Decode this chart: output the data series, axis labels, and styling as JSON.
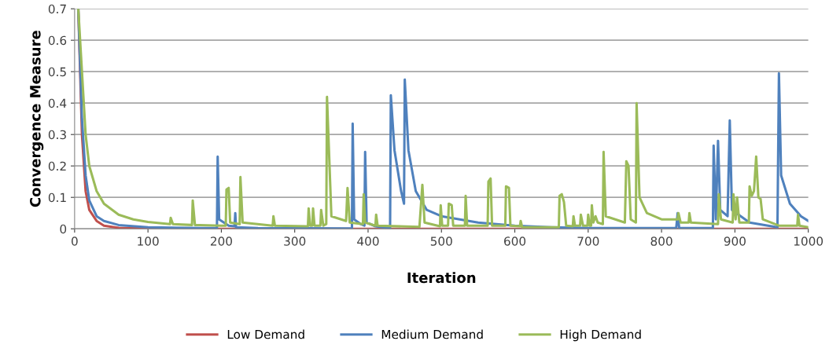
{
  "chart_data": {
    "type": "line",
    "xlabel": "Iteration",
    "ylabel": "Convergence Measure",
    "xlim": [
      0,
      1000
    ],
    "xticks": [
      0,
      100,
      200,
      300,
      400,
      500,
      600,
      700,
      800,
      900,
      1000
    ],
    "ylim": [
      0,
      0.7
    ],
    "yticks": [
      0,
      0.1,
      0.2,
      0.3,
      0.4,
      0.5,
      0.6,
      0.7
    ],
    "grid": "y",
    "legend": "bottom",
    "marker": "none",
    "line_style": "solid",
    "series": [
      {
        "name": "Low Demand",
        "color": "#c0504d",
        "x": [
          5,
          10,
          15,
          20,
          30,
          40,
          60,
          100,
          200,
          1000
        ],
        "values": [
          0.7,
          0.3,
          0.12,
          0.06,
          0.025,
          0.01,
          0.003,
          0.001,
          0.0,
          0.0
        ]
      },
      {
        "name": "Medium Demand",
        "color": "#4f81bd",
        "x": [
          5,
          10,
          15,
          20,
          30,
          40,
          60,
          100,
          150,
          194,
          195,
          197,
          210,
          218,
          219,
          220,
          250,
          378,
          379,
          381,
          390,
          395,
          396,
          398,
          410,
          430,
          431,
          436,
          445,
          449,
          450,
          455,
          465,
          480,
          500,
          550,
          600,
          650,
          700,
          820,
          822,
          824,
          870,
          871,
          874,
          877,
          880,
          890,
          893,
          896,
          920,
          958,
          960,
          963,
          975,
          990,
          1000
        ],
        "values": [
          0.7,
          0.35,
          0.17,
          0.09,
          0.04,
          0.025,
          0.012,
          0.005,
          0.003,
          0.002,
          0.23,
          0.03,
          0.01,
          0.008,
          0.05,
          0.005,
          0.002,
          0.001,
          0.335,
          0.03,
          0.015,
          0.01,
          0.245,
          0.02,
          0.008,
          0.002,
          0.425,
          0.25,
          0.12,
          0.08,
          0.475,
          0.25,
          0.12,
          0.06,
          0.04,
          0.02,
          0.01,
          0.005,
          0.002,
          0.002,
          0.05,
          0.003,
          0.002,
          0.265,
          0.03,
          0.28,
          0.06,
          0.04,
          0.345,
          0.06,
          0.02,
          0.005,
          0.495,
          0.17,
          0.08,
          0.04,
          0.025
        ]
      },
      {
        "name": "High Demand",
        "color": "#9bbb59",
        "x": [
          5,
          10,
          15,
          20,
          30,
          40,
          60,
          80,
          100,
          130,
          131,
          134,
          160,
          161,
          164,
          200,
          206,
          207,
          210,
          212,
          225,
          226,
          229,
          270,
          271,
          273,
          318,
          319,
          321,
          324,
          325,
          327,
          335,
          336,
          339,
          343,
          344,
          350,
          370,
          372,
          375,
          393,
          394,
          396,
          410,
          411,
          413,
          470,
          474,
          477,
          498,
          499,
          501,
          509,
          510,
          514,
          516,
          532,
          533,
          535,
          563,
          564,
          567,
          569,
          587,
          588,
          592,
          594,
          607,
          608,
          610,
          660,
          661,
          664,
          667,
          670,
          679,
          680,
          682,
          689,
          690,
          693,
          699,
          700,
          702,
          704,
          705,
          707,
          710,
          713,
          720,
          721,
          724,
          750,
          752,
          755,
          758,
          765,
          766,
          770,
          780,
          800,
          822,
          823,
          826,
          837,
          838,
          840,
          877,
          878,
          881,
          897,
          898,
          901,
          903,
          906,
          919,
          920,
          923,
          926,
          929,
          932,
          935,
          938,
          960,
          985,
          986,
          988,
          1000
        ],
        "values": [
          0.7,
          0.5,
          0.3,
          0.2,
          0.12,
          0.08,
          0.045,
          0.03,
          0.022,
          0.015,
          0.035,
          0.015,
          0.012,
          0.09,
          0.012,
          0.01,
          0.01,
          0.125,
          0.13,
          0.02,
          0.015,
          0.165,
          0.02,
          0.01,
          0.04,
          0.01,
          0.008,
          0.065,
          0.01,
          0.01,
          0.065,
          0.01,
          0.01,
          0.06,
          0.01,
          0.015,
          0.42,
          0.04,
          0.025,
          0.13,
          0.02,
          0.015,
          0.11,
          0.02,
          0.01,
          0.045,
          0.01,
          0.006,
          0.14,
          0.02,
          0.008,
          0.075,
          0.01,
          0.01,
          0.08,
          0.075,
          0.01,
          0.01,
          0.105,
          0.01,
          0.01,
          0.15,
          0.16,
          0.01,
          0.01,
          0.135,
          0.13,
          0.01,
          0.008,
          0.025,
          0.005,
          0.005,
          0.105,
          0.11,
          0.085,
          0.01,
          0.008,
          0.04,
          0.01,
          0.01,
          0.045,
          0.01,
          0.01,
          0.045,
          0.01,
          0.01,
          0.075,
          0.02,
          0.04,
          0.02,
          0.015,
          0.245,
          0.04,
          0.02,
          0.215,
          0.2,
          0.03,
          0.02,
          0.4,
          0.1,
          0.05,
          0.03,
          0.03,
          0.05,
          0.02,
          0.02,
          0.05,
          0.02,
          0.015,
          0.11,
          0.03,
          0.02,
          0.11,
          0.03,
          0.1,
          0.02,
          0.02,
          0.135,
          0.105,
          0.12,
          0.23,
          0.1,
          0.095,
          0.03,
          0.01,
          0.01,
          0.045,
          0.01,
          0.005
        ]
      }
    ]
  }
}
